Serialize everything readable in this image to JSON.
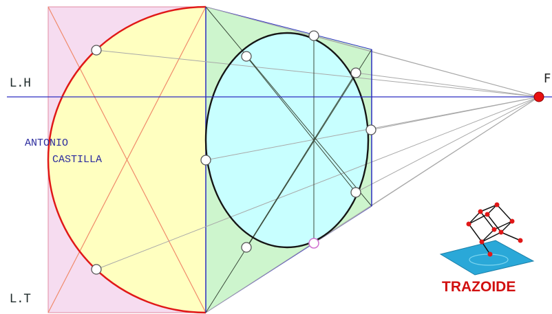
{
  "labels": {
    "horizon_line": "L.H",
    "ground_line": "L.T",
    "vanishing_point": "F",
    "author_line1": "ANTONIO",
    "author_line2": "CASTILLA",
    "logo_text": "TRAZOIDE"
  },
  "colors": {
    "pink_panel": "#f6dcf0",
    "yellow_fill": "#ffffc0",
    "green_panel": "#cdf5cd",
    "cyan_ellipse": "#c8ffff",
    "red_arc": "#e01818",
    "blue_line": "#2c2cc0",
    "gray_ray": "#a8a8a8",
    "logo_red": "#d11010",
    "logo_blue": "#2aa8d8"
  }
}
